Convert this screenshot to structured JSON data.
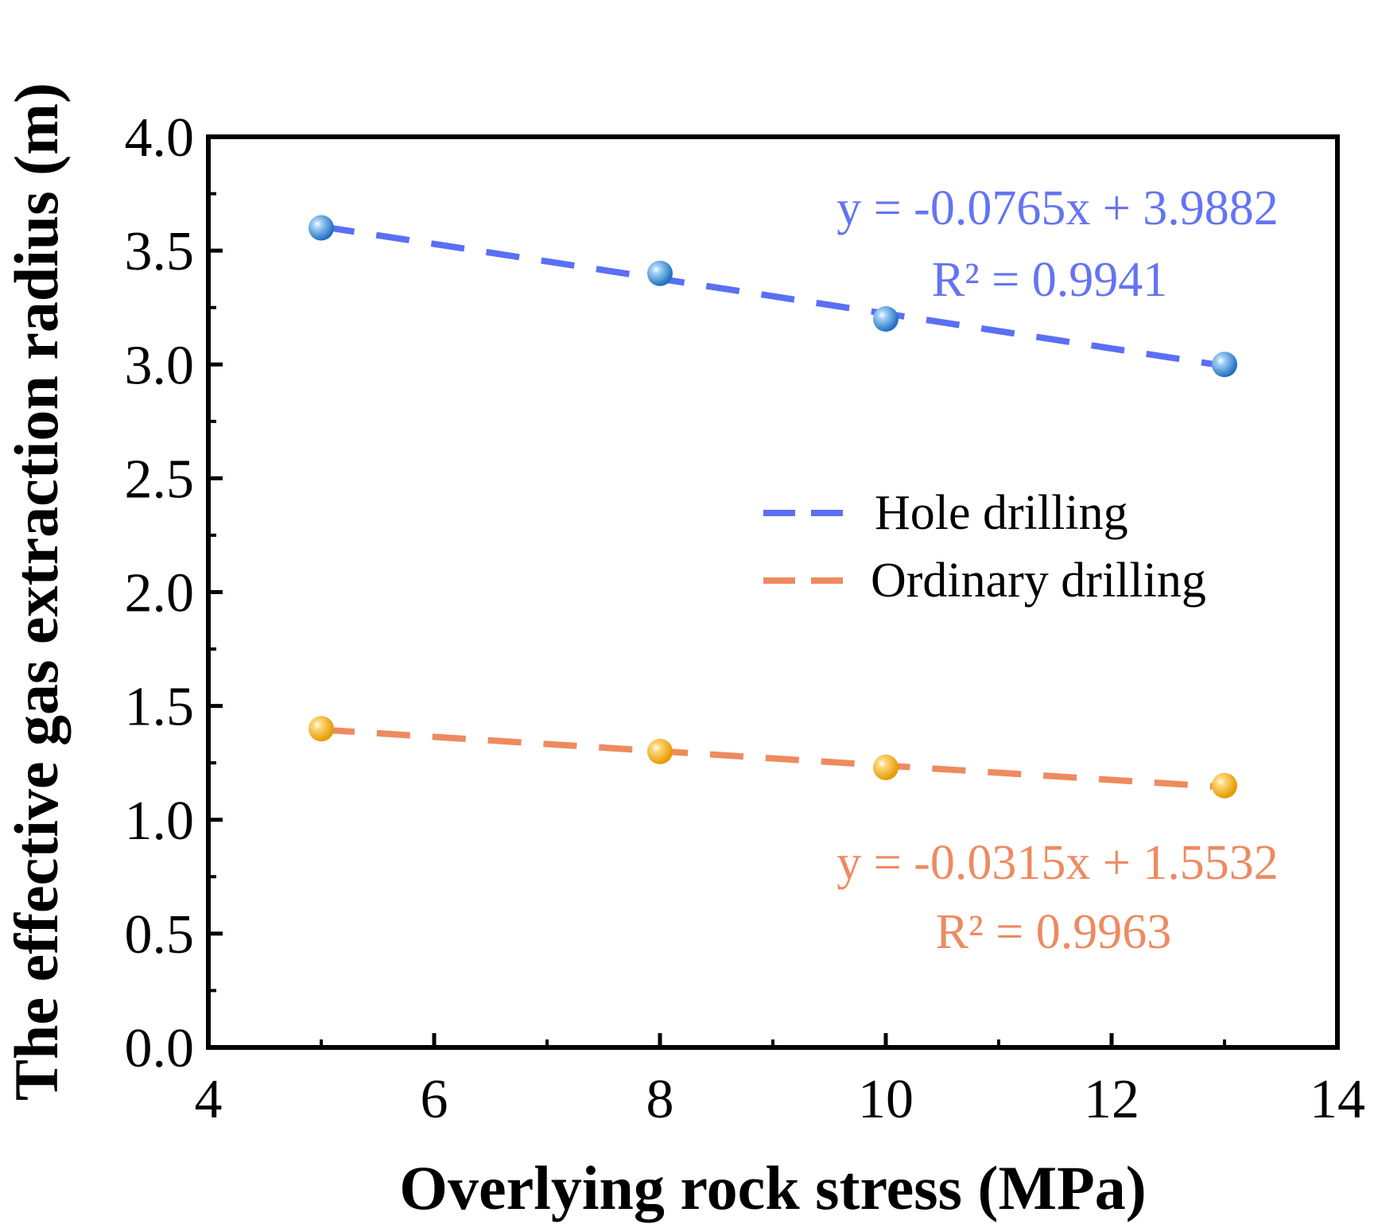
{
  "chart_data": {
    "type": "scatter",
    "title": "",
    "xlabel": "Overlying rock stress (MPa)",
    "ylabel": "The effective gas extraction radius (m)",
    "xlim": [
      4,
      14
    ],
    "ylim": [
      0.0,
      4.0
    ],
    "x_ticks": [
      "4",
      "6",
      "8",
      "10",
      "12",
      "14"
    ],
    "y_ticks": [
      "0.0",
      "0.5",
      "1.0",
      "1.5",
      "2.0",
      "2.5",
      "3.0",
      "3.5",
      "4.0"
    ],
    "grid": false,
    "legend_position": "right-middle",
    "series": [
      {
        "name": "Hole drilling",
        "x": [
          5,
          8,
          10,
          13
        ],
        "y": [
          3.6,
          3.4,
          3.2,
          3.0
        ],
        "marker_color": "#2f86d6",
        "line_color": "#5b6ff5",
        "fit": {
          "slope": -0.0765,
          "intercept": 3.9882
        },
        "equation": "y = -0.0765x + 3.9882",
        "r_squared": "R² = 0.9941",
        "annotation_color": "#6474f2"
      },
      {
        "name": "Ordinary drilling",
        "x": [
          5,
          8,
          10,
          13
        ],
        "y": [
          1.4,
          1.3,
          1.23,
          1.15
        ],
        "marker_color": "#f5a800",
        "line_color": "#ee8a60",
        "fit": {
          "slope": -0.0315,
          "intercept": 1.5532
        },
        "equation": "y = -0.0315x + 1.5532",
        "r_squared": "R² = 0.9963",
        "annotation_color": "#ee8a60"
      }
    ]
  }
}
